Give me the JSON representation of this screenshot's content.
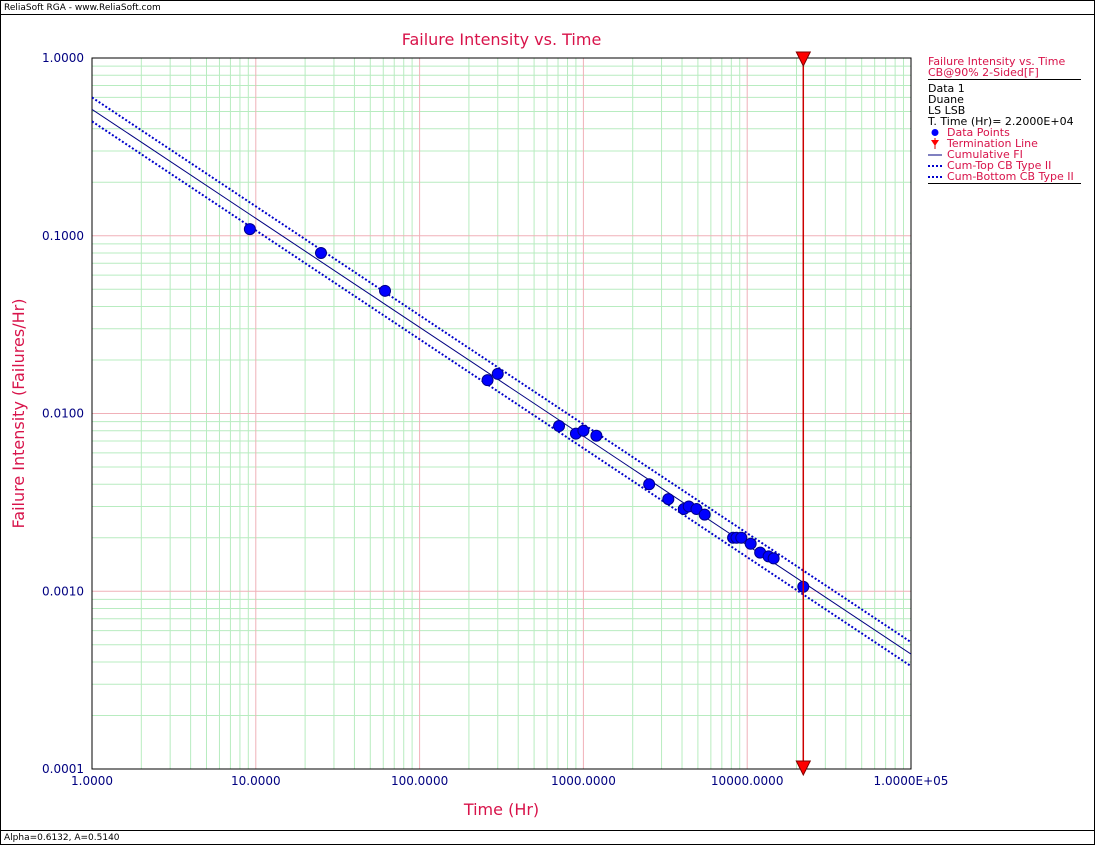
{
  "window": {
    "title_bar": "ReliaSoft RGA - www.ReliaSoft.com",
    "status_bar": "Alpha=0.6132, A=0.5140"
  },
  "colors": {
    "title": "#d8134a",
    "axis_text": "#000080",
    "data_points": "#0000ff",
    "fit_line": "#000080",
    "bounds": "#0000cc",
    "termination": "#cc0000",
    "major_grid": "#f0b0b8",
    "minor_grid": "#b8ecc0"
  },
  "chart_data": {
    "type": "scatter",
    "title": "Failure Intensity vs. Time",
    "xlabel": "Time (Hr)",
    "ylabel": "Failure Intensity (Failures/Hr)",
    "xscale": "log",
    "yscale": "log",
    "xlim": [
      1,
      100000
    ],
    "ylim": [
      0.0001,
      1
    ],
    "xticks": [
      1,
      10,
      100,
      1000,
      10000,
      100000
    ],
    "xtick_labels": [
      "1.0000",
      "10.0000",
      "100.0000",
      "1000.0000",
      "10000.0000",
      "1.0000E+05"
    ],
    "yticks": [
      0.0001,
      0.001,
      0.01,
      0.1,
      1
    ],
    "ytick_labels": [
      "0.0001",
      "0.0010",
      "0.0100",
      "0.1000",
      "1.0000"
    ],
    "grid": true,
    "legend_position": "right",
    "termination_time": 22000,
    "series": [
      {
        "name": "Data Points",
        "kind": "points",
        "points": [
          [
            9.2,
            0.109
          ],
          [
            25,
            0.08
          ],
          [
            61.5,
            0.049
          ],
          [
            260,
            0.0154
          ],
          [
            300,
            0.0167
          ],
          [
            710,
            0.0085
          ],
          [
            900,
            0.0077
          ],
          [
            1000,
            0.008
          ],
          [
            1200,
            0.0075
          ],
          [
            2520,
            0.004
          ],
          [
            3300,
            0.0033
          ],
          [
            4100,
            0.0029
          ],
          [
            4400,
            0.003
          ],
          [
            4900,
            0.0029
          ],
          [
            5500,
            0.0027
          ],
          [
            8200,
            0.002
          ],
          [
            8600,
            0.002
          ],
          [
            9200,
            0.002
          ],
          [
            10500,
            0.00185
          ],
          [
            12000,
            0.00165
          ],
          [
            13500,
            0.00157
          ],
          [
            14500,
            0.00153
          ],
          [
            22000,
            0.00106
          ]
        ]
      },
      {
        "name": "Cumulative FI",
        "kind": "line",
        "points": [
          [
            1,
            0.514
          ],
          [
            100000,
            0.000443
          ]
        ]
      },
      {
        "name": "Cum-Top CB Type II",
        "kind": "dotted",
        "points": [
          [
            1,
            0.6
          ],
          [
            100000,
            0.000517
          ]
        ]
      },
      {
        "name": "Cum-Bottom CB Type II",
        "kind": "dotted",
        "points": [
          [
            1,
            0.44
          ],
          [
            100000,
            0.000379
          ]
        ]
      },
      {
        "name": "Termination Line",
        "kind": "vline",
        "x": 22000
      }
    ]
  },
  "legend": {
    "title": "Failure Intensity vs. Time",
    "subtitle": "CB@90% 2-Sided[F]",
    "info": [
      "Data 1",
      "Duane",
      "LS LSB",
      "T. Time (Hr)= 2.2000E+04"
    ],
    "entries": [
      {
        "label": "Data Points",
        "kind": "point"
      },
      {
        "label": "Termination Line",
        "kind": "triangle"
      },
      {
        "label": "Cumulative FI",
        "kind": "line"
      },
      {
        "label": "Cum-Top CB Type II",
        "kind": "dotted"
      },
      {
        "label": "Cum-Bottom CB Type II",
        "kind": "dotted"
      }
    ]
  }
}
